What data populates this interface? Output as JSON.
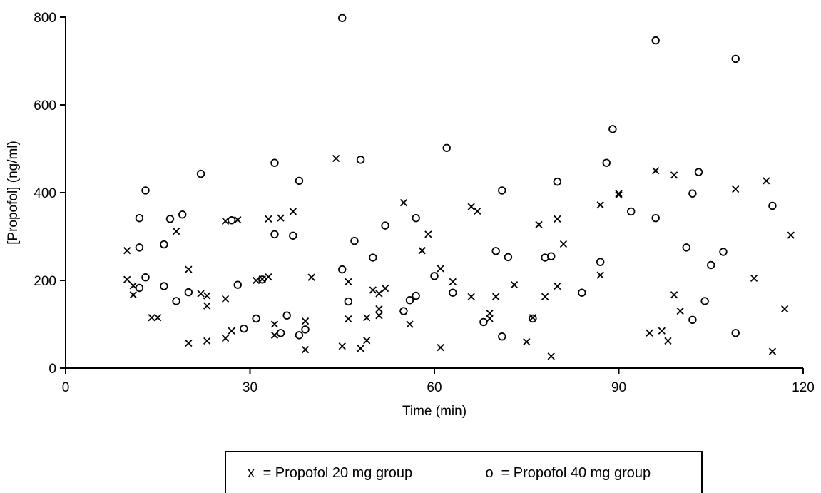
{
  "chart_data": {
    "type": "scatter",
    "xlabel": "Time (min)",
    "ylabel": "[Propofol] (ng/ml)",
    "xlim": [
      0,
      120
    ],
    "ylim": [
      0,
      800
    ],
    "xticks": [
      0,
      30,
      60,
      90,
      120
    ],
    "yticks": [
      0,
      200,
      400,
      600,
      800
    ],
    "grid": false,
    "legend_position": "bottom",
    "series": [
      {
        "name": "Propofol 20 mg group",
        "marker": "x",
        "symbol": "x",
        "legend_label": "= Propofol 20 mg group",
        "points": [
          [
            10,
            268
          ],
          [
            10,
            202
          ],
          [
            11,
            188
          ],
          [
            11,
            167
          ],
          [
            14,
            115
          ],
          [
            15,
            115
          ],
          [
            18,
            312
          ],
          [
            20,
            225
          ],
          [
            20,
            57
          ],
          [
            22,
            170
          ],
          [
            23,
            165
          ],
          [
            23,
            142
          ],
          [
            23,
            62
          ],
          [
            26,
            335
          ],
          [
            26,
            158
          ],
          [
            26,
            68
          ],
          [
            27,
            85
          ],
          [
            28,
            338
          ],
          [
            31,
            200
          ],
          [
            32,
            203
          ],
          [
            33,
            208
          ],
          [
            33,
            340
          ],
          [
            34,
            100
          ],
          [
            34,
            75
          ],
          [
            35,
            342
          ],
          [
            37,
            357
          ],
          [
            39,
            107
          ],
          [
            39,
            42
          ],
          [
            40,
            207
          ],
          [
            44,
            478
          ],
          [
            45,
            50
          ],
          [
            46,
            197
          ],
          [
            46,
            112
          ],
          [
            48,
            45
          ],
          [
            49,
            63
          ],
          [
            49,
            115
          ],
          [
            50,
            178
          ],
          [
            51,
            170
          ],
          [
            51,
            135
          ],
          [
            51,
            120
          ],
          [
            52,
            182
          ],
          [
            55,
            377
          ],
          [
            56,
            100
          ],
          [
            58,
            268
          ],
          [
            59,
            305
          ],
          [
            61,
            227
          ],
          [
            61,
            47
          ],
          [
            63,
            197
          ],
          [
            66,
            163
          ],
          [
            66,
            368
          ],
          [
            67,
            358
          ],
          [
            69,
            113
          ],
          [
            69,
            125
          ],
          [
            70,
            163
          ],
          [
            73,
            190
          ],
          [
            75,
            60
          ],
          [
            76,
            115
          ],
          [
            77,
            327
          ],
          [
            78,
            163
          ],
          [
            79,
            27
          ],
          [
            80,
            340
          ],
          [
            80,
            187
          ],
          [
            81,
            283
          ],
          [
            87,
            372
          ],
          [
            87,
            212
          ],
          [
            90,
            398
          ],
          [
            90,
            395
          ],
          [
            95,
            80
          ],
          [
            96,
            450
          ],
          [
            97,
            85
          ],
          [
            98,
            62
          ],
          [
            99,
            440
          ],
          [
            99,
            167
          ],
          [
            100,
            130
          ],
          [
            109,
            408
          ],
          [
            112,
            205
          ],
          [
            114,
            427
          ],
          [
            115,
            38
          ],
          [
            117,
            135
          ],
          [
            118,
            303
          ]
        ]
      },
      {
        "name": "Propofol 40 mg group",
        "marker": "o",
        "symbol": "o",
        "legend_label": "= Propofol 40 mg group",
        "points": [
          [
            12,
            342
          ],
          [
            12,
            275
          ],
          [
            12,
            183
          ],
          [
            13,
            405
          ],
          [
            13,
            207
          ],
          [
            16,
            282
          ],
          [
            16,
            187
          ],
          [
            17,
            340
          ],
          [
            18,
            153
          ],
          [
            19,
            350
          ],
          [
            20,
            173
          ],
          [
            22,
            443
          ],
          [
            27,
            337
          ],
          [
            28,
            190
          ],
          [
            29,
            90
          ],
          [
            31,
            113
          ],
          [
            32,
            202
          ],
          [
            34,
            468
          ],
          [
            34,
            305
          ],
          [
            35,
            80
          ],
          [
            36,
            120
          ],
          [
            37,
            302
          ],
          [
            38,
            427
          ],
          [
            38,
            75
          ],
          [
            39,
            88
          ],
          [
            45,
            798
          ],
          [
            45,
            225
          ],
          [
            46,
            152
          ],
          [
            47,
            290
          ],
          [
            48,
            475
          ],
          [
            50,
            252
          ],
          [
            52,
            325
          ],
          [
            55,
            130
          ],
          [
            56,
            155
          ],
          [
            57,
            165
          ],
          [
            57,
            342
          ],
          [
            60,
            210
          ],
          [
            62,
            502
          ],
          [
            63,
            172
          ],
          [
            68,
            105
          ],
          [
            70,
            267
          ],
          [
            71,
            405
          ],
          [
            71,
            72
          ],
          [
            72,
            253
          ],
          [
            76,
            113
          ],
          [
            78,
            252
          ],
          [
            79,
            255
          ],
          [
            80,
            425
          ],
          [
            84,
            172
          ],
          [
            87,
            242
          ],
          [
            88,
            468
          ],
          [
            89,
            545
          ],
          [
            92,
            357
          ],
          [
            96,
            747
          ],
          [
            96,
            342
          ],
          [
            101,
            275
          ],
          [
            102,
            398
          ],
          [
            102,
            110
          ],
          [
            103,
            447
          ],
          [
            104,
            153
          ],
          [
            105,
            235
          ],
          [
            107,
            265
          ],
          [
            109,
            705
          ],
          [
            109,
            80
          ],
          [
            115,
            370
          ]
        ]
      }
    ]
  }
}
